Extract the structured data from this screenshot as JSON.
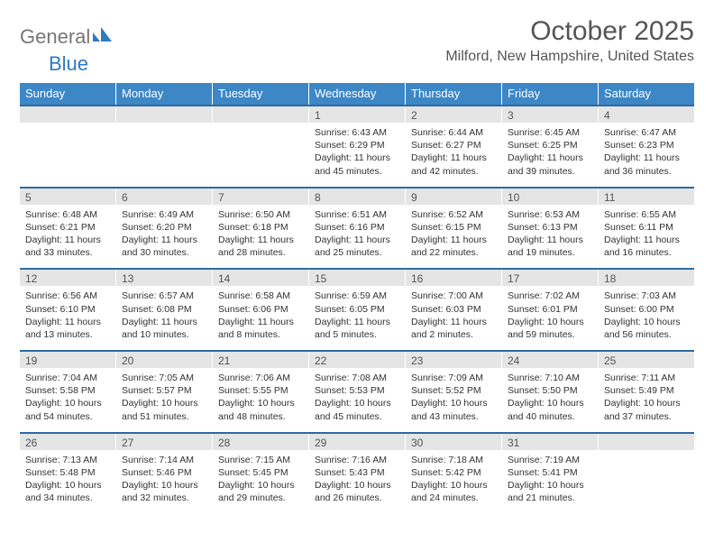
{
  "logo": {
    "text1": "General",
    "text2": "Blue"
  },
  "title": "October 2025",
  "location": "Milford, New Hampshire, United States",
  "colors": {
    "header_bg": "#3d87c7",
    "header_text": "#ffffff",
    "day_bg": "#e5e5e5",
    "week_border": "#2d6aa3",
    "logo_gray": "#777777",
    "logo_blue": "#2d7bc0",
    "body_text": "#333333",
    "title_text": "#555555"
  },
  "headers": [
    "Sunday",
    "Monday",
    "Tuesday",
    "Wednesday",
    "Thursday",
    "Friday",
    "Saturday"
  ],
  "weeks": [
    [
      {
        "n": "",
        "l1": "",
        "l2": "",
        "l3": "",
        "l4": ""
      },
      {
        "n": "",
        "l1": "",
        "l2": "",
        "l3": "",
        "l4": ""
      },
      {
        "n": "",
        "l1": "",
        "l2": "",
        "l3": "",
        "l4": ""
      },
      {
        "n": "1",
        "l1": "Sunrise: 6:43 AM",
        "l2": "Sunset: 6:29 PM",
        "l3": "Daylight: 11 hours",
        "l4": "and 45 minutes."
      },
      {
        "n": "2",
        "l1": "Sunrise: 6:44 AM",
        "l2": "Sunset: 6:27 PM",
        "l3": "Daylight: 11 hours",
        "l4": "and 42 minutes."
      },
      {
        "n": "3",
        "l1": "Sunrise: 6:45 AM",
        "l2": "Sunset: 6:25 PM",
        "l3": "Daylight: 11 hours",
        "l4": "and 39 minutes."
      },
      {
        "n": "4",
        "l1": "Sunrise: 6:47 AM",
        "l2": "Sunset: 6:23 PM",
        "l3": "Daylight: 11 hours",
        "l4": "and 36 minutes."
      }
    ],
    [
      {
        "n": "5",
        "l1": "Sunrise: 6:48 AM",
        "l2": "Sunset: 6:21 PM",
        "l3": "Daylight: 11 hours",
        "l4": "and 33 minutes."
      },
      {
        "n": "6",
        "l1": "Sunrise: 6:49 AM",
        "l2": "Sunset: 6:20 PM",
        "l3": "Daylight: 11 hours",
        "l4": "and 30 minutes."
      },
      {
        "n": "7",
        "l1": "Sunrise: 6:50 AM",
        "l2": "Sunset: 6:18 PM",
        "l3": "Daylight: 11 hours",
        "l4": "and 28 minutes."
      },
      {
        "n": "8",
        "l1": "Sunrise: 6:51 AM",
        "l2": "Sunset: 6:16 PM",
        "l3": "Daylight: 11 hours",
        "l4": "and 25 minutes."
      },
      {
        "n": "9",
        "l1": "Sunrise: 6:52 AM",
        "l2": "Sunset: 6:15 PM",
        "l3": "Daylight: 11 hours",
        "l4": "and 22 minutes."
      },
      {
        "n": "10",
        "l1": "Sunrise: 6:53 AM",
        "l2": "Sunset: 6:13 PM",
        "l3": "Daylight: 11 hours",
        "l4": "and 19 minutes."
      },
      {
        "n": "11",
        "l1": "Sunrise: 6:55 AM",
        "l2": "Sunset: 6:11 PM",
        "l3": "Daylight: 11 hours",
        "l4": "and 16 minutes."
      }
    ],
    [
      {
        "n": "12",
        "l1": "Sunrise: 6:56 AM",
        "l2": "Sunset: 6:10 PM",
        "l3": "Daylight: 11 hours",
        "l4": "and 13 minutes."
      },
      {
        "n": "13",
        "l1": "Sunrise: 6:57 AM",
        "l2": "Sunset: 6:08 PM",
        "l3": "Daylight: 11 hours",
        "l4": "and 10 minutes."
      },
      {
        "n": "14",
        "l1": "Sunrise: 6:58 AM",
        "l2": "Sunset: 6:06 PM",
        "l3": "Daylight: 11 hours",
        "l4": "and 8 minutes."
      },
      {
        "n": "15",
        "l1": "Sunrise: 6:59 AM",
        "l2": "Sunset: 6:05 PM",
        "l3": "Daylight: 11 hours",
        "l4": "and 5 minutes."
      },
      {
        "n": "16",
        "l1": "Sunrise: 7:00 AM",
        "l2": "Sunset: 6:03 PM",
        "l3": "Daylight: 11 hours",
        "l4": "and 2 minutes."
      },
      {
        "n": "17",
        "l1": "Sunrise: 7:02 AM",
        "l2": "Sunset: 6:01 PM",
        "l3": "Daylight: 10 hours",
        "l4": "and 59 minutes."
      },
      {
        "n": "18",
        "l1": "Sunrise: 7:03 AM",
        "l2": "Sunset: 6:00 PM",
        "l3": "Daylight: 10 hours",
        "l4": "and 56 minutes."
      }
    ],
    [
      {
        "n": "19",
        "l1": "Sunrise: 7:04 AM",
        "l2": "Sunset: 5:58 PM",
        "l3": "Daylight: 10 hours",
        "l4": "and 54 minutes."
      },
      {
        "n": "20",
        "l1": "Sunrise: 7:05 AM",
        "l2": "Sunset: 5:57 PM",
        "l3": "Daylight: 10 hours",
        "l4": "and 51 minutes."
      },
      {
        "n": "21",
        "l1": "Sunrise: 7:06 AM",
        "l2": "Sunset: 5:55 PM",
        "l3": "Daylight: 10 hours",
        "l4": "and 48 minutes."
      },
      {
        "n": "22",
        "l1": "Sunrise: 7:08 AM",
        "l2": "Sunset: 5:53 PM",
        "l3": "Daylight: 10 hours",
        "l4": "and 45 minutes."
      },
      {
        "n": "23",
        "l1": "Sunrise: 7:09 AM",
        "l2": "Sunset: 5:52 PM",
        "l3": "Daylight: 10 hours",
        "l4": "and 43 minutes."
      },
      {
        "n": "24",
        "l1": "Sunrise: 7:10 AM",
        "l2": "Sunset: 5:50 PM",
        "l3": "Daylight: 10 hours",
        "l4": "and 40 minutes."
      },
      {
        "n": "25",
        "l1": "Sunrise: 7:11 AM",
        "l2": "Sunset: 5:49 PM",
        "l3": "Daylight: 10 hours",
        "l4": "and 37 minutes."
      }
    ],
    [
      {
        "n": "26",
        "l1": "Sunrise: 7:13 AM",
        "l2": "Sunset: 5:48 PM",
        "l3": "Daylight: 10 hours",
        "l4": "and 34 minutes."
      },
      {
        "n": "27",
        "l1": "Sunrise: 7:14 AM",
        "l2": "Sunset: 5:46 PM",
        "l3": "Daylight: 10 hours",
        "l4": "and 32 minutes."
      },
      {
        "n": "28",
        "l1": "Sunrise: 7:15 AM",
        "l2": "Sunset: 5:45 PM",
        "l3": "Daylight: 10 hours",
        "l4": "and 29 minutes."
      },
      {
        "n": "29",
        "l1": "Sunrise: 7:16 AM",
        "l2": "Sunset: 5:43 PM",
        "l3": "Daylight: 10 hours",
        "l4": "and 26 minutes."
      },
      {
        "n": "30",
        "l1": "Sunrise: 7:18 AM",
        "l2": "Sunset: 5:42 PM",
        "l3": "Daylight: 10 hours",
        "l4": "and 24 minutes."
      },
      {
        "n": "31",
        "l1": "Sunrise: 7:19 AM",
        "l2": "Sunset: 5:41 PM",
        "l3": "Daylight: 10 hours",
        "l4": "and 21 minutes."
      },
      {
        "n": "",
        "l1": "",
        "l2": "",
        "l3": "",
        "l4": ""
      }
    ]
  ]
}
